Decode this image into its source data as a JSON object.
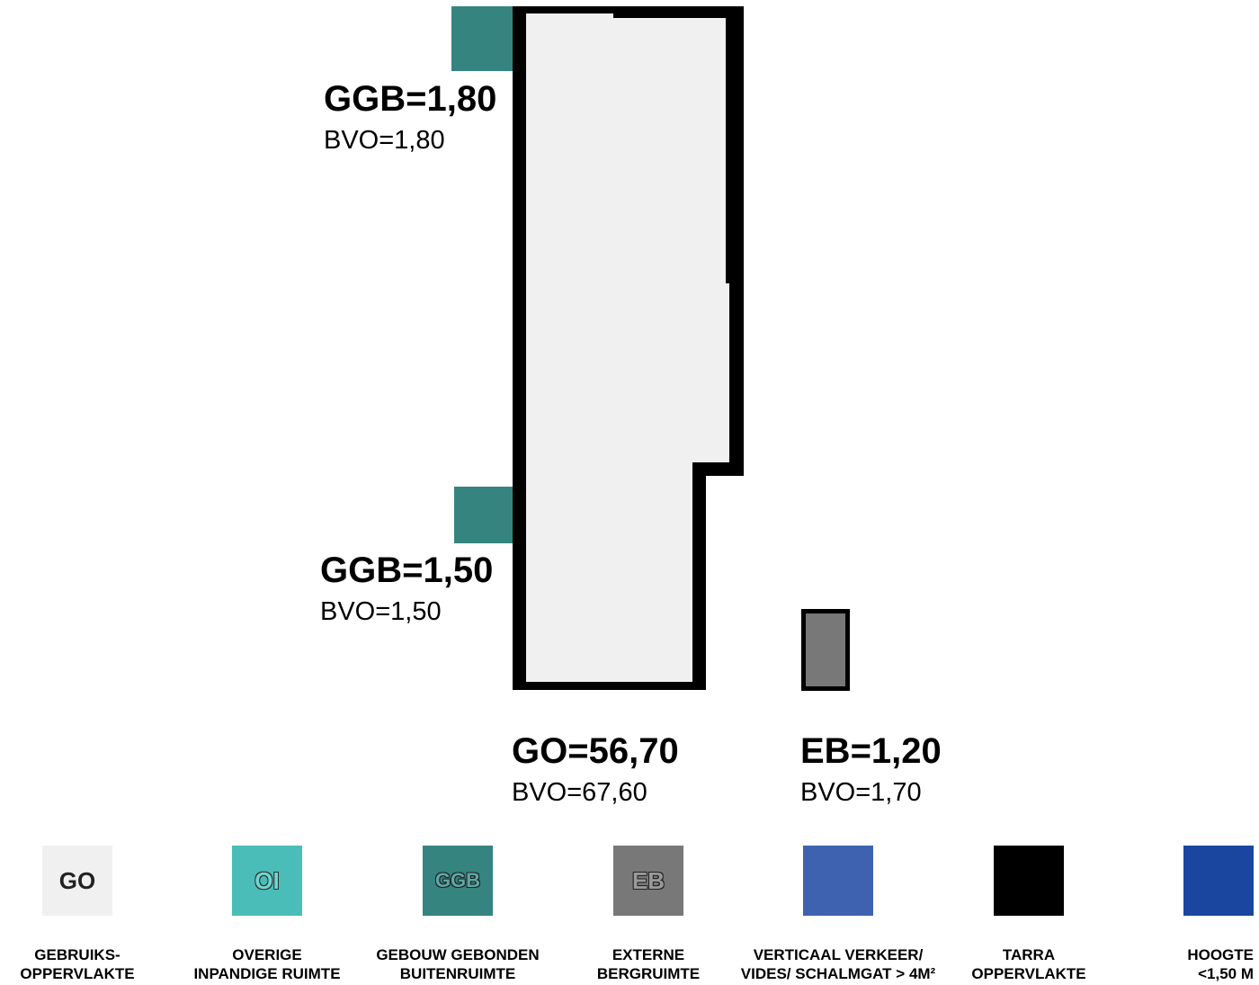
{
  "labels": {
    "ggb_top": {
      "value": "GGB=1,80",
      "bvo": "BVO=1,80"
    },
    "ggb_bottom": {
      "value": "GGB=1,50",
      "bvo": "BVO=1,50"
    },
    "go": {
      "value": "GO=56,70",
      "bvo": "BVO=67,60"
    },
    "eb": {
      "value": "EB=1,20",
      "bvo": "BVO=1,70"
    }
  },
  "colors": {
    "go": "#f0f0f0",
    "oi": "#4bbdb8",
    "ggb": "#358480",
    "eb": "#787878",
    "verticaal": "#3e62b0",
    "tarra": "#000000",
    "hoogte": "#1a46a0"
  },
  "legend": [
    {
      "code": "GO",
      "caption": "GEBRUIKS-\nOPPERVLAKTE",
      "color": "#f0f0f0"
    },
    {
      "code": "OI",
      "caption": "OVERIGE\nINPANDIGE RUIMTE",
      "color": "#4bbdb8"
    },
    {
      "code": "GGB",
      "caption": "GEBOUW GEBONDEN\nBUITENRUIMTE",
      "color": "#358480"
    },
    {
      "code": "EB",
      "caption": "EXTERNE\nBERGRUIMTE",
      "color": "#787878"
    },
    {
      "code": "",
      "caption": "VERTICAAL VERKEER/\nVIDES/ SCHALMGAT > 4M²",
      "color": "#3e62b0"
    },
    {
      "code": "",
      "caption": "TARRA\nOPPERVLAKTE",
      "color": "#000000"
    },
    {
      "code": "",
      "caption": "HOOGTE\n<1,50 M",
      "color": "#1a46a0"
    }
  ]
}
